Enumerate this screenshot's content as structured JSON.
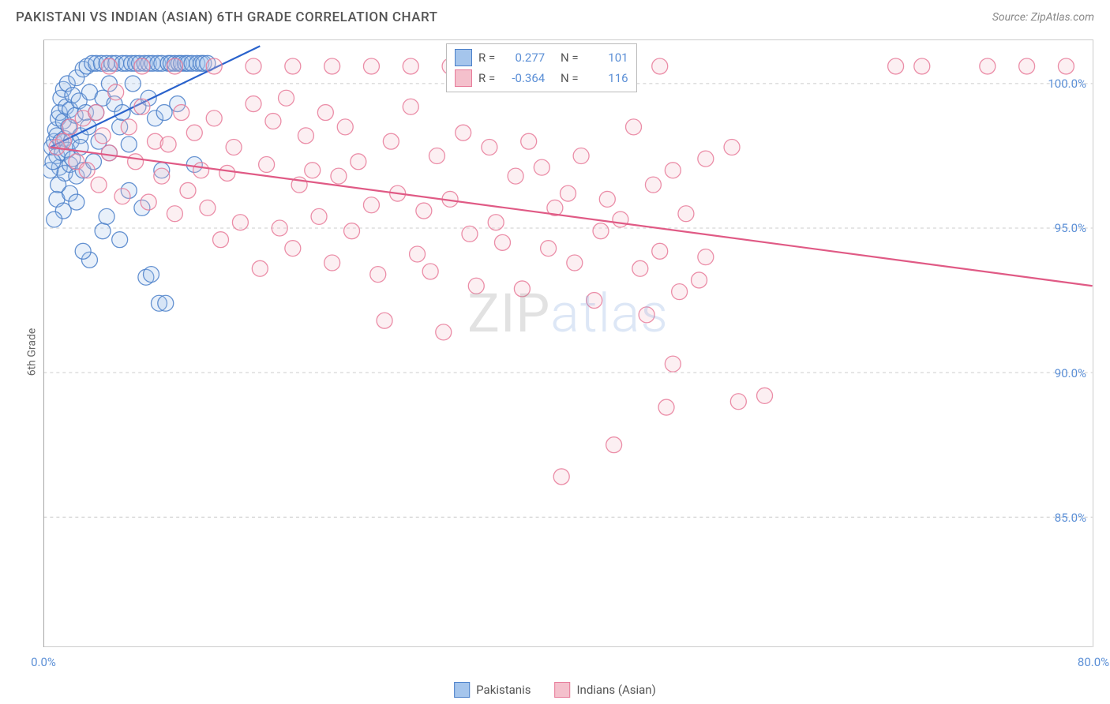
{
  "title": "PAKISTANI VS INDIAN (ASIAN) 6TH GRADE CORRELATION CHART",
  "source": "Source: ZipAtlas.com",
  "y_axis_label": "6th Grade",
  "watermark": {
    "part1": "ZIP",
    "part2": "atlas"
  },
  "chart": {
    "type": "scatter",
    "background_color": "#ffffff",
    "grid_color": "#cccccc",
    "axis_color": "#999999",
    "xlim": [
      0,
      80
    ],
    "ylim": [
      80.5,
      101.5
    ],
    "x_ticks": [
      0,
      10,
      20,
      30,
      40,
      50,
      60,
      70,
      80
    ],
    "x_tick_labels": {
      "0": "0.0%",
      "80": "80.0%"
    },
    "y_ticks": [
      85,
      90,
      95,
      100
    ],
    "y_tick_labels": {
      "85": "85.0%",
      "90": "90.0%",
      "95": "95.0%",
      "100": "100.0%"
    },
    "marker_radius": 10,
    "marker_fill_opacity": 0.25,
    "marker_stroke_opacity": 0.85,
    "marker_stroke_width": 1.3,
    "line_width": 2.2,
    "series": [
      {
        "name": "Pakistanis",
        "color_fill": "#a5c5ec",
        "color_stroke": "#4a7fc9",
        "line_color": "#2962cc",
        "R": "0.277",
        "N": "101",
        "trend": {
          "x1": 0.5,
          "y1": 97.8,
          "x2": 16.5,
          "y2": 101.3
        },
        "points": [
          [
            0.6,
            97.8
          ],
          [
            0.8,
            98.0
          ],
          [
            0.9,
            98.4
          ],
          [
            1.0,
            97.5
          ],
          [
            1.0,
            98.2
          ],
          [
            1.1,
            98.8
          ],
          [
            1.2,
            97.1
          ],
          [
            1.2,
            99.0
          ],
          [
            1.3,
            98.0
          ],
          [
            1.3,
            99.5
          ],
          [
            1.4,
            97.6
          ],
          [
            1.5,
            98.7
          ],
          [
            1.5,
            99.8
          ],
          [
            1.6,
            96.9
          ],
          [
            1.6,
            98.1
          ],
          [
            1.7,
            99.2
          ],
          [
            1.8,
            97.7
          ],
          [
            1.8,
            100.0
          ],
          [
            1.9,
            98.5
          ],
          [
            2.0,
            97.2
          ],
          [
            2.0,
            99.1
          ],
          [
            2.1,
            98.0
          ],
          [
            2.2,
            99.6
          ],
          [
            2.2,
            97.4
          ],
          [
            2.4,
            98.9
          ],
          [
            2.5,
            100.2
          ],
          [
            2.5,
            96.8
          ],
          [
            2.7,
            99.4
          ],
          [
            2.8,
            98.2
          ],
          [
            3.0,
            100.5
          ],
          [
            3.0,
            97.0
          ],
          [
            3.2,
            99.0
          ],
          [
            3.3,
            100.6
          ],
          [
            3.4,
            98.5
          ],
          [
            3.5,
            99.7
          ],
          [
            3.7,
            100.7
          ],
          [
            3.8,
            97.3
          ],
          [
            4.0,
            100.7
          ],
          [
            4.0,
            99.0
          ],
          [
            4.2,
            98.0
          ],
          [
            4.4,
            100.7
          ],
          [
            4.5,
            99.5
          ],
          [
            4.8,
            100.7
          ],
          [
            5.0,
            97.6
          ],
          [
            5.0,
            100.0
          ],
          [
            5.2,
            100.7
          ],
          [
            5.4,
            99.3
          ],
          [
            5.5,
            100.7
          ],
          [
            5.8,
            98.5
          ],
          [
            6.0,
            100.7
          ],
          [
            6.0,
            99.0
          ],
          [
            6.3,
            100.7
          ],
          [
            6.5,
            97.9
          ],
          [
            6.7,
            100.7
          ],
          [
            6.8,
            100.0
          ],
          [
            7.0,
            100.7
          ],
          [
            7.2,
            99.2
          ],
          [
            7.3,
            100.7
          ],
          [
            7.5,
            95.7
          ],
          [
            7.7,
            100.7
          ],
          [
            7.8,
            93.3
          ],
          [
            8.0,
            100.7
          ],
          [
            8.0,
            99.5
          ],
          [
            8.2,
            93.4
          ],
          [
            8.3,
            100.7
          ],
          [
            8.5,
            98.8
          ],
          [
            8.7,
            100.7
          ],
          [
            8.8,
            92.4
          ],
          [
            9.0,
            100.7
          ],
          [
            9.2,
            99.0
          ],
          [
            9.3,
            92.4
          ],
          [
            9.5,
            100.7
          ],
          [
            9.7,
            100.7
          ],
          [
            10.0,
            100.7
          ],
          [
            10.2,
            99.3
          ],
          [
            10.3,
            100.7
          ],
          [
            10.5,
            100.7
          ],
          [
            10.8,
            100.7
          ],
          [
            11.0,
            100.7
          ],
          [
            11.3,
            100.7
          ],
          [
            11.5,
            97.2
          ],
          [
            11.7,
            100.7
          ],
          [
            12.0,
            100.7
          ],
          [
            12.2,
            100.7
          ],
          [
            12.5,
            100.7
          ],
          [
            1.0,
            96.0
          ],
          [
            1.5,
            95.6
          ],
          [
            2.0,
            96.2
          ],
          [
            2.5,
            95.9
          ],
          [
            0.8,
            95.3
          ],
          [
            3.5,
            93.9
          ],
          [
            4.5,
            94.9
          ],
          [
            5.8,
            94.6
          ],
          [
            3.0,
            94.2
          ],
          [
            0.5,
            97.0
          ],
          [
            0.7,
            97.3
          ],
          [
            1.1,
            96.5
          ],
          [
            4.8,
            95.4
          ],
          [
            2.8,
            97.8
          ],
          [
            6.5,
            96.3
          ],
          [
            9.0,
            97.0
          ]
        ]
      },
      {
        "name": "Indians (Asian)",
        "color_fill": "#f4c0cc",
        "color_stroke": "#e77a99",
        "line_color": "#e05a85",
        "R": "-0.364",
        "N": "116",
        "trend": {
          "x1": 0.5,
          "y1": 97.8,
          "x2": 80,
          "y2": 93.0
        },
        "points": [
          [
            1.0,
            97.8
          ],
          [
            1.5,
            98.0
          ],
          [
            2.0,
            98.5
          ],
          [
            2.5,
            97.3
          ],
          [
            3.0,
            98.8
          ],
          [
            3.3,
            97.0
          ],
          [
            4.0,
            99.0
          ],
          [
            4.2,
            96.5
          ],
          [
            4.5,
            98.2
          ],
          [
            5.0,
            97.6
          ],
          [
            5.5,
            99.7
          ],
          [
            6.0,
            96.1
          ],
          [
            6.5,
            98.5
          ],
          [
            7.0,
            97.3
          ],
          [
            7.5,
            99.2
          ],
          [
            8.0,
            95.9
          ],
          [
            8.5,
            98.0
          ],
          [
            9.0,
            96.8
          ],
          [
            9.5,
            97.9
          ],
          [
            10.0,
            95.5
          ],
          [
            10.5,
            99.0
          ],
          [
            11.0,
            96.3
          ],
          [
            11.5,
            98.3
          ],
          [
            12.0,
            97.0
          ],
          [
            12.5,
            95.7
          ],
          [
            13.0,
            98.8
          ],
          [
            13.5,
            94.6
          ],
          [
            14.0,
            96.9
          ],
          [
            14.5,
            97.8
          ],
          [
            15.0,
            95.2
          ],
          [
            16.0,
            99.3
          ],
          [
            16.5,
            93.6
          ],
          [
            17.0,
            97.2
          ],
          [
            17.5,
            98.7
          ],
          [
            18.0,
            95.0
          ],
          [
            18.5,
            99.5
          ],
          [
            19.0,
            94.3
          ],
          [
            19.5,
            96.5
          ],
          [
            20.0,
            98.2
          ],
          [
            20.5,
            97.0
          ],
          [
            21.0,
            95.4
          ],
          [
            21.5,
            99.0
          ],
          [
            22.0,
            93.8
          ],
          [
            22.5,
            96.8
          ],
          [
            23.0,
            98.5
          ],
          [
            23.5,
            94.9
          ],
          [
            24.0,
            97.3
          ],
          [
            25.0,
            95.8
          ],
          [
            25.5,
            93.4
          ],
          [
            26.0,
            91.8
          ],
          [
            26.5,
            98.0
          ],
          [
            27.0,
            96.2
          ],
          [
            28.0,
            99.2
          ],
          [
            28.5,
            94.1
          ],
          [
            29.0,
            95.6
          ],
          [
            29.5,
            93.5
          ],
          [
            30.0,
            97.5
          ],
          [
            30.5,
            91.4
          ],
          [
            31.0,
            96.0
          ],
          [
            32.0,
            98.3
          ],
          [
            32.5,
            94.8
          ],
          [
            33.0,
            93.0
          ],
          [
            34.0,
            97.8
          ],
          [
            34.5,
            95.2
          ],
          [
            35.0,
            94.5
          ],
          [
            36.0,
            96.8
          ],
          [
            36.5,
            92.9
          ],
          [
            37.0,
            98.0
          ],
          [
            38.0,
            97.1
          ],
          [
            38.5,
            94.3
          ],
          [
            39.0,
            95.7
          ],
          [
            39.5,
            86.4
          ],
          [
            40.0,
            96.2
          ],
          [
            40.5,
            93.8
          ],
          [
            41.0,
            97.5
          ],
          [
            42.0,
            92.5
          ],
          [
            42.5,
            94.9
          ],
          [
            43.0,
            96.0
          ],
          [
            43.5,
            87.5
          ],
          [
            44.0,
            95.3
          ],
          [
            45.0,
            98.5
          ],
          [
            45.5,
            93.6
          ],
          [
            46.0,
            92.0
          ],
          [
            46.5,
            96.5
          ],
          [
            47.0,
            94.2
          ],
          [
            47.5,
            88.8
          ],
          [
            48.0,
            97.0
          ],
          [
            48.5,
            92.8
          ],
          [
            49.0,
            95.5
          ],
          [
            50.0,
            93.2
          ],
          [
            50.5,
            94.0
          ],
          [
            5.0,
            100.6
          ],
          [
            7.5,
            100.6
          ],
          [
            10.0,
            100.6
          ],
          [
            13.0,
            100.6
          ],
          [
            16.0,
            100.6
          ],
          [
            19.0,
            100.6
          ],
          [
            22.0,
            100.6
          ],
          [
            25.0,
            100.6
          ],
          [
            28.0,
            100.6
          ],
          [
            31.0,
            100.6
          ],
          [
            34.0,
            100.6
          ],
          [
            37.0,
            100.6
          ],
          [
            40.0,
            100.6
          ],
          [
            44.0,
            100.6
          ],
          [
            47.0,
            100.6
          ],
          [
            52.5,
            97.8
          ],
          [
            53.0,
            89.0
          ],
          [
            55.0,
            89.2
          ],
          [
            65.0,
            100.6
          ],
          [
            67.0,
            100.6
          ],
          [
            72.0,
            100.6
          ],
          [
            75.0,
            100.6
          ],
          [
            78.0,
            100.6
          ],
          [
            50.5,
            97.4
          ],
          [
            48.0,
            90.3
          ]
        ]
      }
    ]
  },
  "legend_stats": {
    "r_label": "R =",
    "n_label": "N ="
  },
  "bottom_legend": {
    "series1": "Pakistanis",
    "series2": "Indians (Asian)"
  }
}
